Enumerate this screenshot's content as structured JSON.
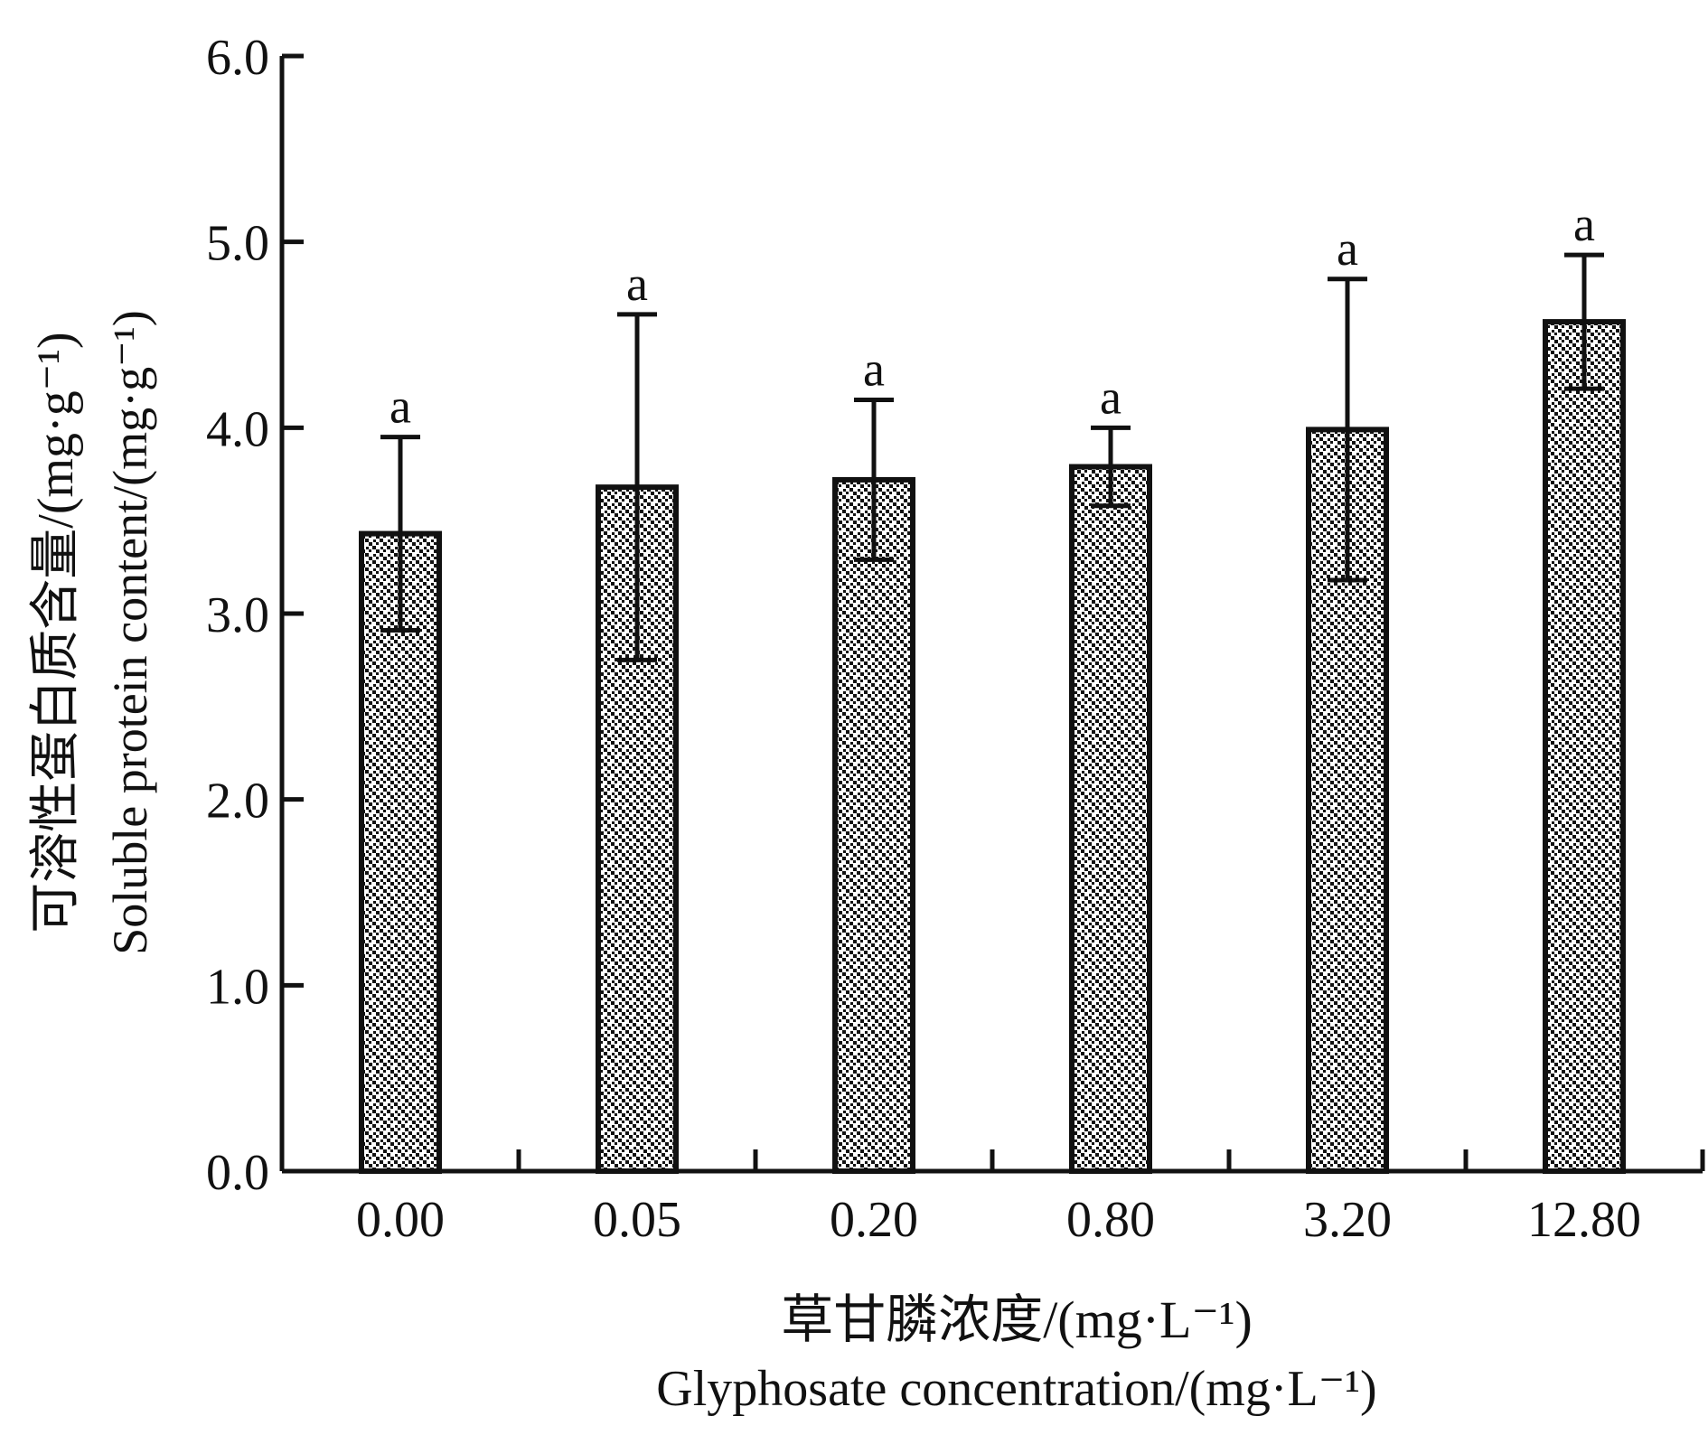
{
  "chart_data": {
    "type": "bar",
    "categories": [
      "0.00",
      "0.05",
      "0.20",
      "0.80",
      "3.20",
      "12.80"
    ],
    "values": [
      3.43,
      3.68,
      3.72,
      3.79,
      3.99,
      4.57
    ],
    "errors": [
      0.52,
      0.93,
      0.43,
      0.21,
      0.81,
      0.36
    ],
    "significance_labels": [
      "a",
      "a",
      "a",
      "a",
      "a",
      "a"
    ],
    "ylim": [
      0,
      6.0
    ],
    "y_ticks": [
      "0.0",
      "1.0",
      "2.0",
      "3.0",
      "4.0",
      "5.0",
      "6.0"
    ],
    "y_tick_values": [
      0,
      1,
      2,
      3,
      4,
      5,
      6
    ],
    "xlabel_zh": "草甘膦浓度/(mg·L⁻¹)",
    "xlabel_en": "Glyphosate concentration/(mg·L⁻¹)",
    "ylabel_zh": "可溶性蛋白质含量/(mg·g⁻¹)",
    "ylabel_en": "Soluble protein content/(mg·g⁻¹)",
    "grid": false,
    "legend": "none",
    "bar_fill": "diagonal-checker-hatch",
    "colors": {
      "ink": "#111111",
      "background": "#ffffff"
    }
  }
}
